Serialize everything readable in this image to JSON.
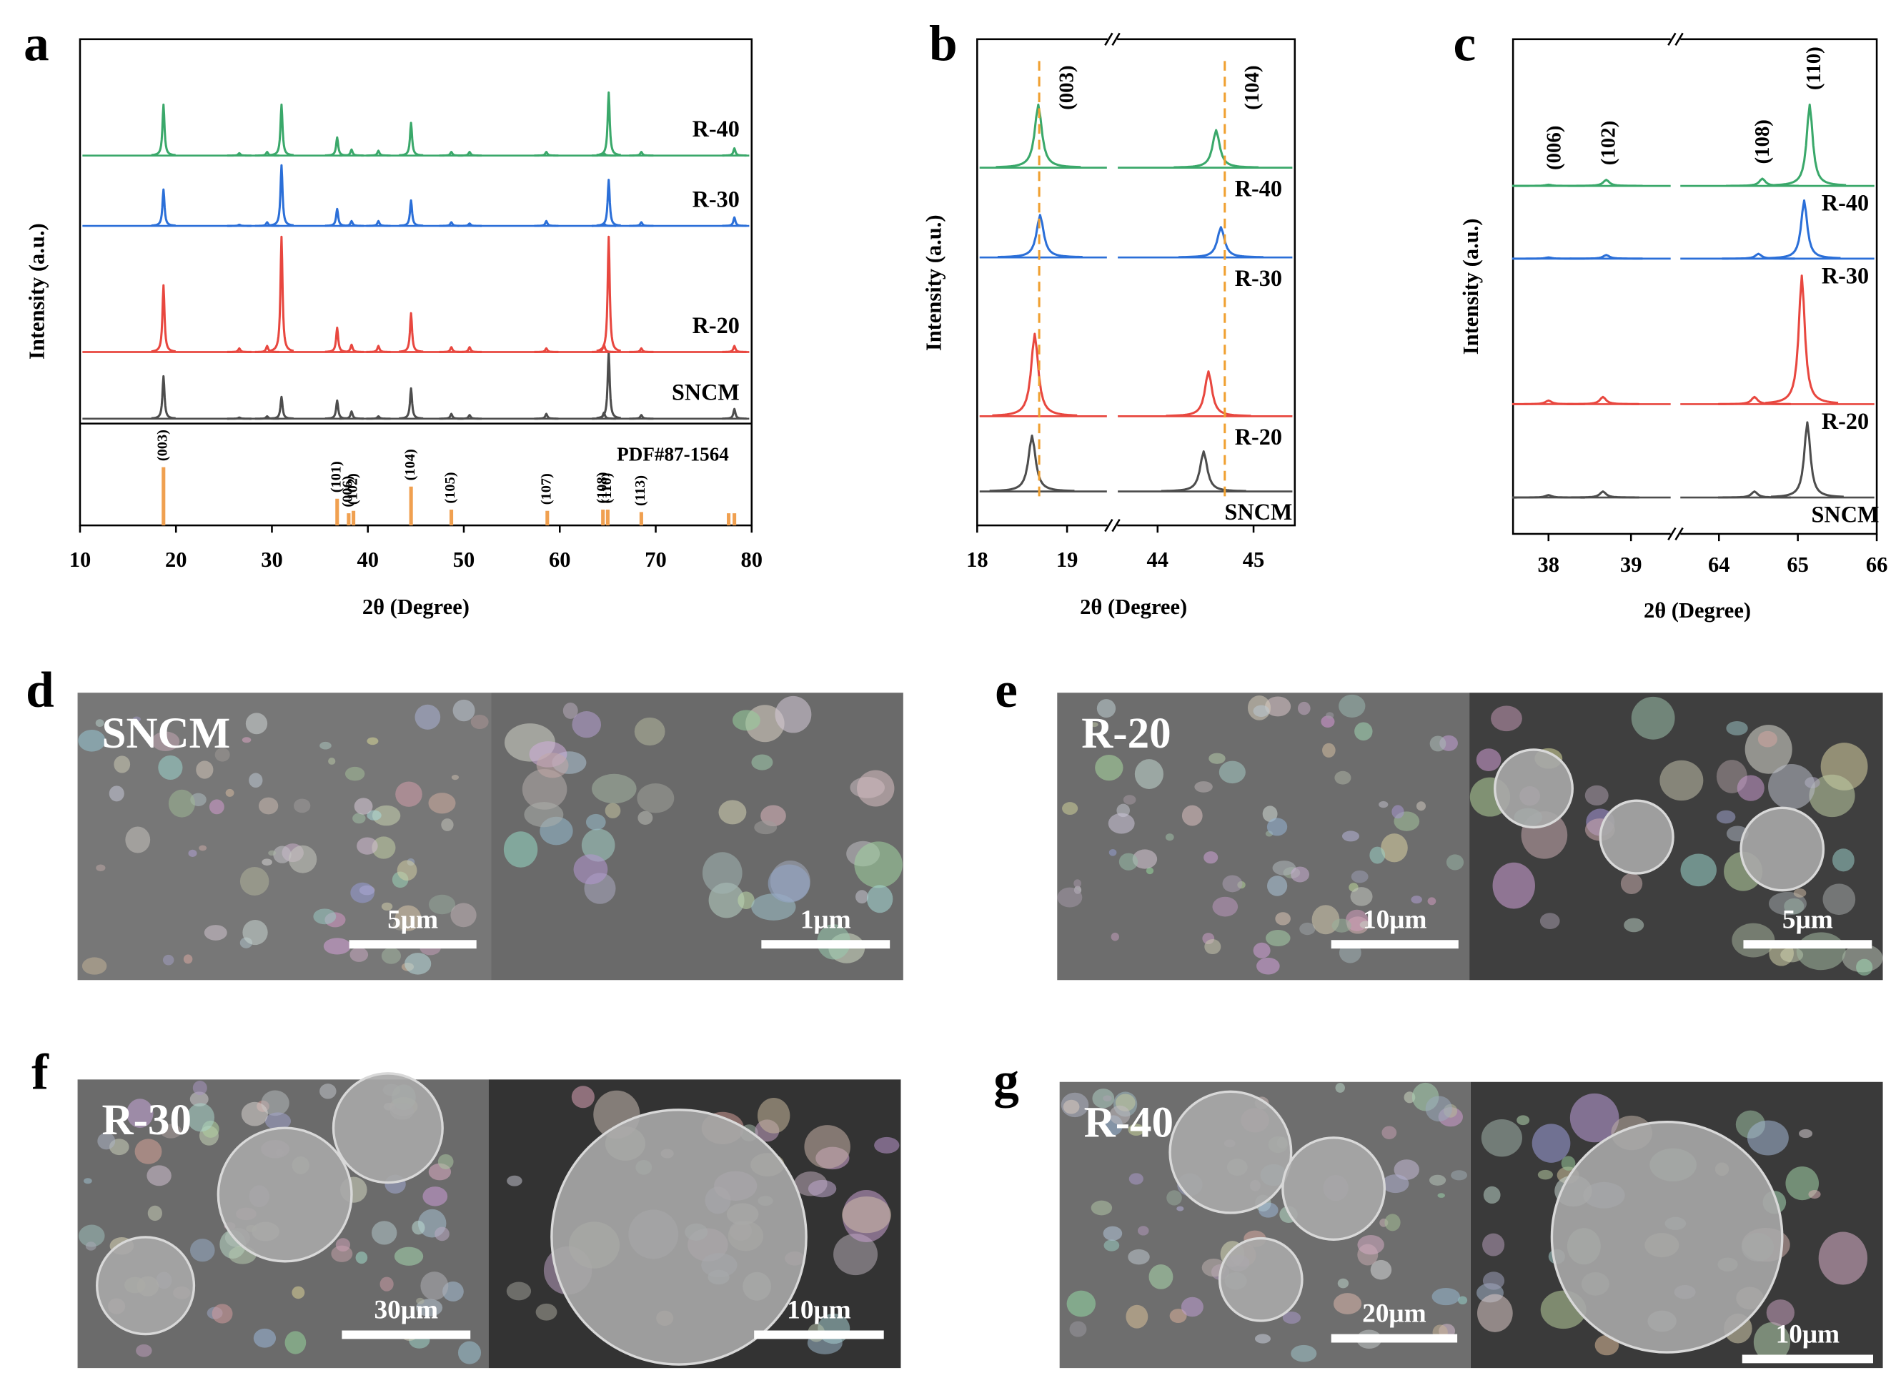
{
  "chart_data": [
    {
      "type": "spectrum",
      "panel_label": "a",
      "xlabel": "2θ (Degree)",
      "ylabel": "Intensity (a.u.)",
      "xlim": [
        10,
        80
      ],
      "xticks": [
        10,
        20,
        30,
        40,
        50,
        60,
        70,
        80
      ],
      "series": [
        {
          "name": "SNCM",
          "color": "#4d4d4d",
          "x": [
            18.7,
            26.6,
            29.5,
            31.0,
            36.8,
            38.3,
            41.1,
            44.5,
            48.7,
            50.6,
            58.6,
            64.6,
            65.1,
            68.5,
            78.2
          ],
          "values": [
            35,
            1,
            2,
            18,
            15,
            6,
            2,
            25,
            4,
            3,
            4,
            5,
            55,
            3,
            8
          ]
        },
        {
          "name": "R-20",
          "color": "#e8473f",
          "x": [
            18.7,
            26.6,
            29.5,
            31.0,
            36.8,
            38.3,
            41.1,
            44.5,
            48.7,
            50.6,
            58.6,
            64.6,
            65.1,
            68.5,
            78.2
          ],
          "values": [
            55,
            3,
            5,
            95,
            20,
            6,
            5,
            32,
            4,
            4,
            3,
            6,
            95,
            3,
            5
          ]
        },
        {
          "name": "R-30",
          "color": "#2b6fd8",
          "x": [
            18.7,
            26.6,
            29.5,
            31.0,
            36.8,
            38.3,
            41.1,
            44.5,
            48.7,
            50.6,
            58.6,
            64.6,
            65.1,
            68.5,
            78.2
          ],
          "values": [
            30,
            1,
            3,
            50,
            14,
            4,
            4,
            21,
            3,
            2,
            4,
            2,
            38,
            3,
            7
          ]
        },
        {
          "name": "R-40",
          "color": "#3aa86a",
          "x": [
            18.7,
            26.6,
            29.5,
            31.0,
            36.8,
            38.3,
            41.1,
            44.5,
            48.7,
            50.6,
            58.6,
            64.6,
            65.1,
            68.5,
            78.2
          ],
          "values": [
            42,
            2,
            3,
            42,
            15,
            5,
            4,
            27,
            3,
            3,
            3,
            2,
            52,
            3,
            6
          ]
        }
      ],
      "reference": {
        "name": "PDF#87-1564",
        "color": "#f0a050",
        "x": [
          18.7,
          36.8,
          38.0,
          38.5,
          44.5,
          48.7,
          58.7,
          64.5,
          65.0,
          68.5,
          77.6,
          78.2
        ],
        "values": [
          48,
          22,
          10,
          12,
          32,
          13,
          12,
          13,
          13,
          11,
          10,
          10
        ],
        "labels": [
          "(003)",
          "(101)",
          "(006)",
          "(102)",
          "(104)",
          "(105)",
          "(107)",
          "(108)",
          "(110)",
          "(113)",
          null,
          null
        ]
      }
    },
    {
      "type": "spectrum",
      "panel_label": "b",
      "xlabel": "2θ (Degree)",
      "ylabel": "Intensity (a.u.)",
      "x_segments": [
        {
          "xlim": [
            18,
            19.47
          ],
          "xticks": [
            18,
            19
          ]
        },
        {
          "xlim": [
            43.56,
            45.43
          ],
          "xticks": [
            44,
            45
          ]
        }
      ],
      "series": [
        {
          "name": "SNCM",
          "color": "#4d4d4d",
          "x": [
            18.61,
            44.48
          ],
          "values": [
            46,
            33
          ]
        },
        {
          "name": "R-20",
          "color": "#e8473f",
          "x": [
            18.64,
            44.53
          ],
          "values": [
            68,
            37
          ]
        },
        {
          "name": "R-30",
          "color": "#2b6fd8",
          "x": [
            18.7,
            44.66
          ],
          "values": [
            35,
            25
          ]
        },
        {
          "name": "R-40",
          "color": "#3aa86a",
          "x": [
            18.68,
            44.61
          ],
          "values": [
            52,
            31
          ]
        }
      ],
      "reference_lines": {
        "color": "#f0a030",
        "x": [
          18.69,
          44.7
        ],
        "labels": [
          "(003)",
          "(104)"
        ]
      }
    },
    {
      "type": "spectrum",
      "panel_label": "c",
      "xlabel": "2θ (Degree)",
      "ylabel": "Intensity (a.u.)",
      "x_segments": [
        {
          "xlim": [
            37.57,
            39.51
          ],
          "xticks": [
            38,
            39
          ]
        },
        {
          "xlim": [
            63.48,
            66
          ],
          "xticks": [
            64,
            65,
            66
          ]
        }
      ],
      "series": [
        {
          "name": "SNCM",
          "color": "#4d4d4d",
          "x": [
            38.0,
            38.66,
            64.45,
            65.12
          ],
          "values": [
            2,
            5,
            5,
            62
          ]
        },
        {
          "name": "R-20",
          "color": "#e8473f",
          "x": [
            38.0,
            38.66,
            64.45,
            65.05
          ],
          "values": [
            3,
            6,
            6,
            106
          ]
        },
        {
          "name": "R-30",
          "color": "#2b6fd8",
          "x": [
            38.0,
            38.7,
            64.5,
            65.08
          ],
          "values": [
            1,
            3,
            4,
            48
          ]
        },
        {
          "name": "R-40",
          "color": "#3aa86a",
          "x": [
            38.0,
            38.7,
            64.55,
            65.15
          ],
          "values": [
            1,
            5,
            6,
            67
          ]
        }
      ],
      "annotations": {
        "x": [
          38.0,
          38.66,
          64.48,
          65.13
        ],
        "labels": [
          "(006)",
          "(102)",
          "(108)",
          "(110)"
        ]
      }
    }
  ],
  "sem_images": [
    {
      "panel_label": "d",
      "sample": "SNCM",
      "scale_bars": [
        "5μm",
        "1μm"
      ]
    },
    {
      "panel_label": "e",
      "sample": "R-20",
      "scale_bars": [
        "10μm",
        "5μm"
      ]
    },
    {
      "panel_label": "f",
      "sample": "R-30",
      "scale_bars": [
        "30μm",
        "10μm"
      ]
    },
    {
      "panel_label": "g",
      "sample": "R-40",
      "scale_bars": [
        "20μm",
        "10μm"
      ]
    }
  ]
}
